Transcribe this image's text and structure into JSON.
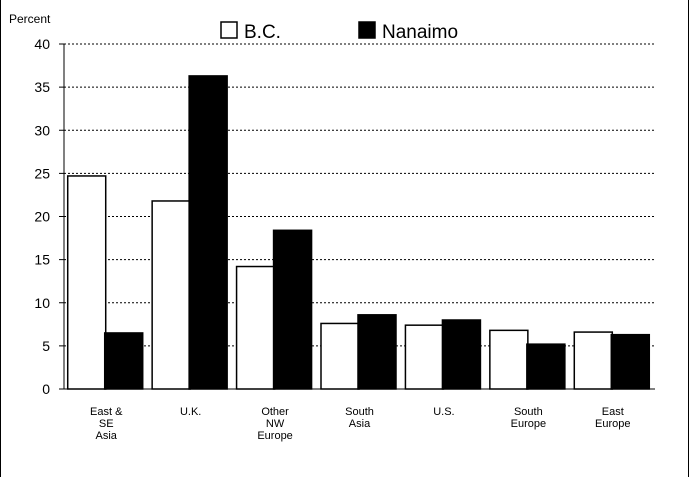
{
  "chart_data": {
    "type": "bar",
    "ylabel": "Percent",
    "ylim": [
      0,
      40
    ],
    "yticks": [
      0,
      5,
      10,
      15,
      20,
      25,
      30,
      35,
      40
    ],
    "grid": "horizontal dashed",
    "legend_position": "top",
    "categories": [
      [
        "East &",
        "SE",
        "Asia"
      ],
      [
        "U.K."
      ],
      [
        "Other",
        "NW",
        "Europe"
      ],
      [
        "South",
        "Asia"
      ],
      [
        "U.S."
      ],
      [
        "South",
        "Europe"
      ],
      [
        "East",
        "Europe"
      ]
    ],
    "series": [
      {
        "name": "B.C.",
        "fill": "#ffffff",
        "stroke": "#000000",
        "values": [
          24.7,
          21.8,
          14.2,
          7.6,
          7.4,
          6.8,
          6.6
        ]
      },
      {
        "name": "Nanaimo",
        "fill": "#000000",
        "stroke": "#000000",
        "values": [
          6.5,
          36.3,
          18.4,
          8.6,
          8.0,
          5.2,
          6.3
        ]
      }
    ]
  }
}
